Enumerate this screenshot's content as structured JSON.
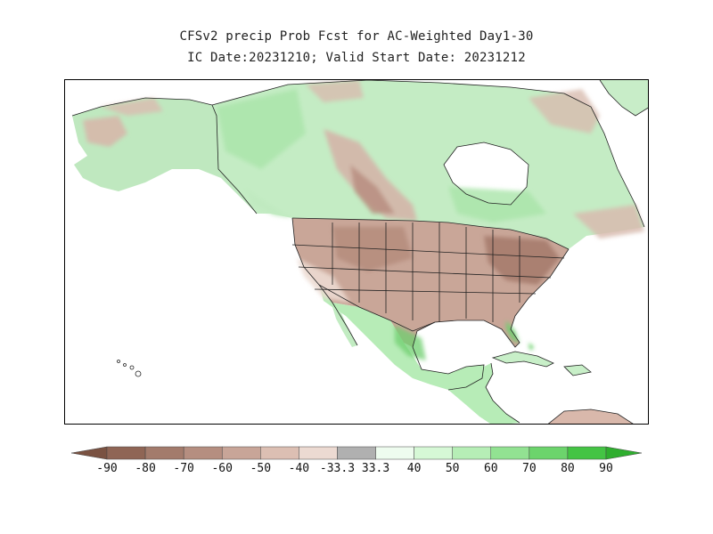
{
  "title_line1": "CFSv2 precip Prob Fcst for AC-Weighted Day1-30",
  "title_line2": "IC Date:20231210; Valid Start Date: 20231212",
  "colorbar": {
    "labels": [
      "-90",
      "-80",
      "-70",
      "-60",
      "-50",
      "-40",
      "-33.3",
      "33.3",
      "40",
      "50",
      "60",
      "70",
      "80",
      "90"
    ],
    "colors": [
      "#7a5242",
      "#8f6555",
      "#a37b6c",
      "#b58e80",
      "#c8a598",
      "#dcbfb3",
      "#ecdad2",
      "#b0b0b0",
      "#eefcef",
      "#d6f8d6",
      "#b6eeb6",
      "#92e292",
      "#6cd46c",
      "#44c444",
      "#2fae2f"
    ]
  },
  "colors": {
    "dry": "#c9a698",
    "dry_strong": "#a97f70",
    "wet": "#b7ecb7",
    "wet_strong": "#7cd57c",
    "neutral": "#ffffff"
  }
}
